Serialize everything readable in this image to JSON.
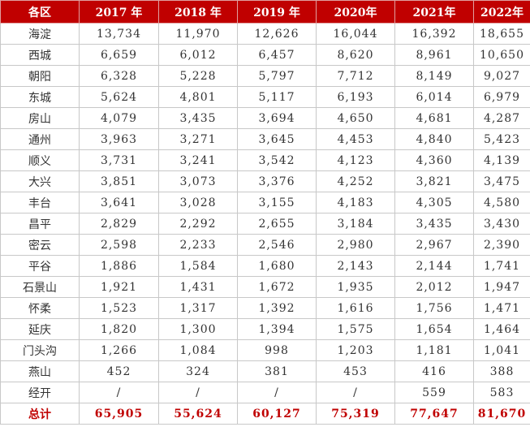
{
  "table": {
    "header": [
      "各区",
      "2017 年",
      "2018 年",
      "2019 年",
      "2020年",
      "2021年",
      "2022年"
    ],
    "rows": [
      [
        "海淀",
        "13,734",
        "11,970",
        "12,626",
        "16,044",
        "16,392",
        "18,655"
      ],
      [
        "西城",
        "6,659",
        "6,012",
        "6,457",
        "8,620",
        "8,961",
        "10,650"
      ],
      [
        "朝阳",
        "6,328",
        "5,228",
        "5,797",
        "7,712",
        "8,149",
        "9,027"
      ],
      [
        "东城",
        "5,624",
        "4,801",
        "5,117",
        "6,193",
        "6,014",
        "6,979"
      ],
      [
        "房山",
        "4,079",
        "3,435",
        "3,694",
        "4,650",
        "4,681",
        "4,287"
      ],
      [
        "通州",
        "3,963",
        "3,271",
        "3,645",
        "4,453",
        "4,840",
        "5,423"
      ],
      [
        "顺义",
        "3,731",
        "3,241",
        "3,542",
        "4,123",
        "4,360",
        "4,139"
      ],
      [
        "大兴",
        "3,851",
        "3,073",
        "3,376",
        "4,252",
        "3,821",
        "3,475"
      ],
      [
        "丰台",
        "3,641",
        "3,028",
        "3,155",
        "4,183",
        "4,305",
        "4,580"
      ],
      [
        "昌平",
        "2,829",
        "2,292",
        "2,655",
        "3,184",
        "3,435",
        "3,430"
      ],
      [
        "密云",
        "2,598",
        "2,233",
        "2,546",
        "2,980",
        "2,967",
        "2,390"
      ],
      [
        "平谷",
        "1,886",
        "1,584",
        "1,680",
        "2,143",
        "2,144",
        "1,741"
      ],
      [
        "石景山",
        "1,921",
        "1,431",
        "1,672",
        "1,935",
        "2,012",
        "1,947"
      ],
      [
        "怀柔",
        "1,523",
        "1,317",
        "1,392",
        "1,616",
        "1,756",
        "1,471"
      ],
      [
        "延庆",
        "1,820",
        "1,300",
        "1,394",
        "1,575",
        "1,654",
        "1,464"
      ],
      [
        "门头沟",
        "1,266",
        "1,084",
        "998",
        "1,203",
        "1,181",
        "1,041"
      ],
      [
        "燕山",
        "452",
        "324",
        "381",
        "453",
        "416",
        "388"
      ],
      [
        "经开",
        "/",
        "/",
        "/",
        "/",
        "559",
        "583"
      ]
    ],
    "total": [
      "总计",
      "65,905",
      "55,624",
      "60,127",
      "75,319",
      "77,647",
      "81,670"
    ]
  }
}
